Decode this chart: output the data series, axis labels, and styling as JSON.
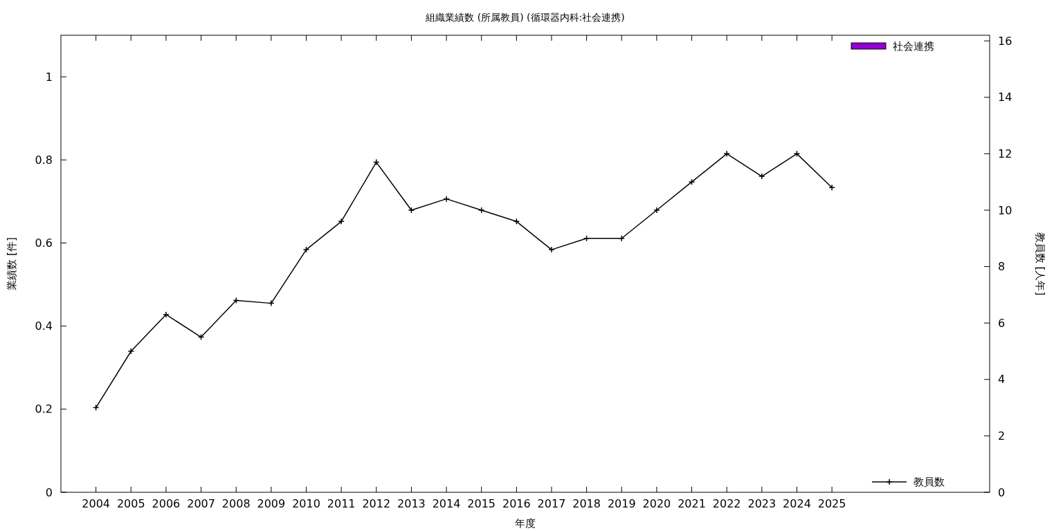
{
  "chart_data": {
    "type": "bar",
    "title": "組織業績数 (所属教員) (循環器内科:社会連携)",
    "xlabel": "年度",
    "ylabel": "業績数 [件]",
    "y2label": "教員数 [人年]",
    "x": [
      2004,
      2005,
      2006,
      2007,
      2008,
      2009,
      2010,
      2011,
      2012,
      2013,
      2014,
      2015,
      2016,
      2017,
      2018,
      2019,
      2020,
      2021,
      2022,
      2023,
      2024,
      2025
    ],
    "xlim": [
      2003,
      2029.5
    ],
    "xticks": [
      2004,
      2005,
      2006,
      2007,
      2008,
      2009,
      2010,
      2011,
      2012,
      2013,
      2014,
      2015,
      2016,
      2017,
      2018,
      2019,
      2020,
      2021,
      2022,
      2023,
      2024,
      2025
    ],
    "ylim": [
      0,
      1.1
    ],
    "yticks": [
      0,
      0.2,
      0.4,
      0.6,
      0.8,
      1
    ],
    "y2lim": [
      0,
      16.2
    ],
    "y2ticks": [
      0,
      2,
      4,
      6,
      8,
      10,
      12,
      14,
      16
    ],
    "series": [
      {
        "name": "社会連携",
        "color": "#9400d3",
        "values": [
          0,
          0,
          0,
          0,
          0,
          0,
          0,
          0,
          0,
          0,
          0,
          0,
          0,
          0,
          0,
          0,
          0,
          0,
          0,
          0,
          0,
          0
        ]
      },
      {
        "name": "教員数",
        "type": "line",
        "axis": "y2",
        "color": "#000000",
        "marker": "cross",
        "values": [
          3,
          5,
          6.3,
          5.5,
          6.8,
          6.7,
          8.6,
          9.6,
          11.7,
          10,
          10.4,
          10,
          9.6,
          8.6,
          9,
          9,
          10,
          11,
          12,
          11.2,
          12,
          10.8
        ]
      }
    ],
    "legend": "right",
    "grid": false
  }
}
